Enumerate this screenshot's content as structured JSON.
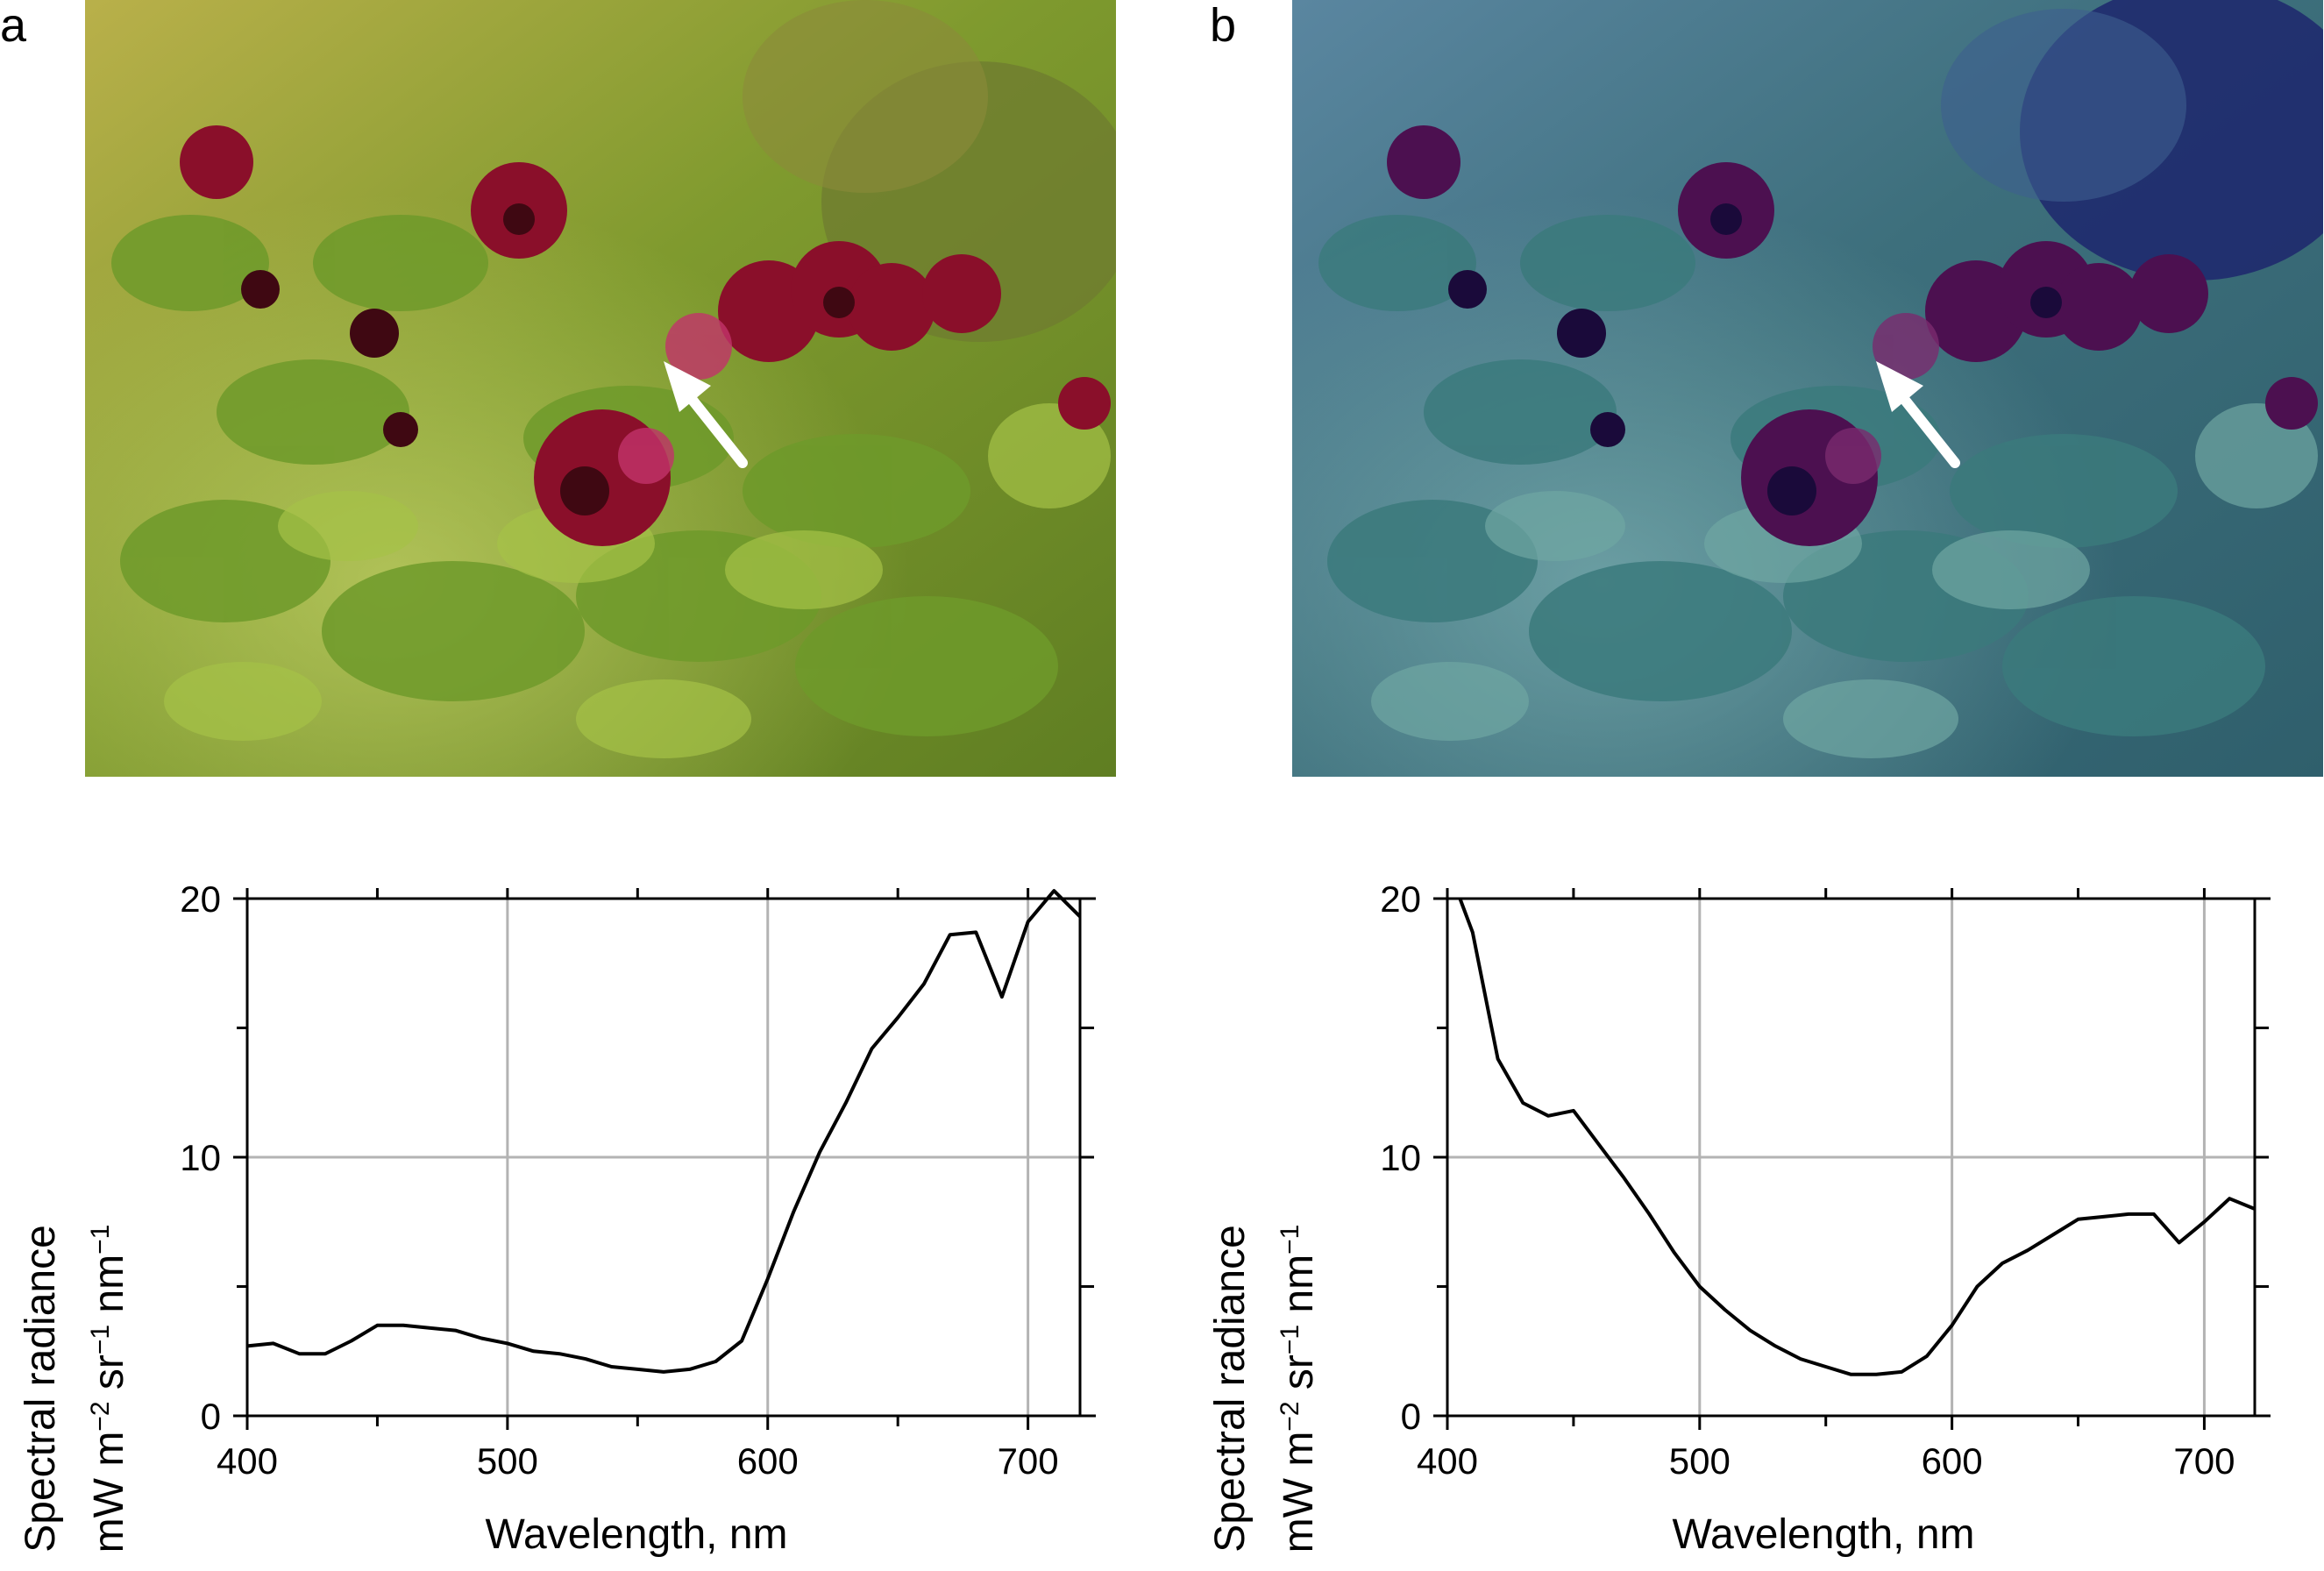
{
  "panels": [
    {
      "letter": "a",
      "photo_description": "",
      "arrow_icon": "white-arrow-icon"
    },
    {
      "letter": "b",
      "photo_description": "",
      "arrow_icon": "white-arrow-icon"
    }
  ],
  "chart_data": [
    {
      "type": "line",
      "panel": "a",
      "xlabel": "Wavelength, nm",
      "ylabel_line1": "Spectral radiance",
      "ylabel_line2": "mW m−2 sr−1 nm−1",
      "xlim": [
        400,
        720
      ],
      "ylim": [
        0,
        20
      ],
      "xticks": [
        400,
        500,
        600,
        700
      ],
      "yticks": [
        0,
        10,
        20
      ],
      "grid": true,
      "line_color": "#000000",
      "x": [
        400,
        410,
        420,
        430,
        440,
        450,
        460,
        470,
        480,
        490,
        500,
        510,
        520,
        530,
        540,
        550,
        560,
        570,
        580,
        590,
        600,
        610,
        620,
        630,
        640,
        650,
        660,
        670,
        680,
        690,
        700,
        710,
        720
      ],
      "y": [
        2.7,
        2.8,
        2.4,
        2.4,
        2.9,
        3.5,
        3.5,
        3.4,
        3.3,
        3.0,
        2.8,
        2.5,
        2.4,
        2.2,
        1.9,
        1.8,
        1.7,
        1.8,
        2.1,
        2.9,
        5.3,
        7.9,
        10.2,
        12.1,
        14.2,
        15.4,
        16.7,
        18.6,
        18.7,
        16.2,
        19.1,
        20.3,
        19.3
      ]
    },
    {
      "type": "line",
      "panel": "b",
      "xlabel": "Wavelength, nm",
      "ylabel_line1": "Spectral radiance",
      "ylabel_line2": "mW m−2 sr−1 nm−1",
      "xlim": [
        400,
        720
      ],
      "ylim": [
        0,
        20
      ],
      "xticks": [
        400,
        500,
        600,
        700
      ],
      "yticks": [
        0,
        10,
        20
      ],
      "grid": true,
      "line_color": "#000000",
      "x": [
        405,
        410,
        420,
        430,
        440,
        450,
        460,
        470,
        480,
        490,
        500,
        510,
        520,
        530,
        540,
        550,
        560,
        570,
        580,
        590,
        600,
        610,
        620,
        630,
        640,
        650,
        660,
        670,
        680,
        690,
        700,
        710,
        720
      ],
      "y": [
        20.0,
        18.7,
        13.8,
        12.1,
        11.6,
        11.8,
        10.5,
        9.2,
        7.8,
        6.3,
        5.0,
        4.1,
        3.3,
        2.7,
        2.2,
        1.9,
        1.6,
        1.6,
        1.7,
        2.3,
        3.5,
        5.0,
        5.9,
        6.4,
        7.0,
        7.6,
        7.7,
        7.8,
        7.8,
        6.7,
        7.5,
        8.4,
        8.0
      ]
    }
  ]
}
